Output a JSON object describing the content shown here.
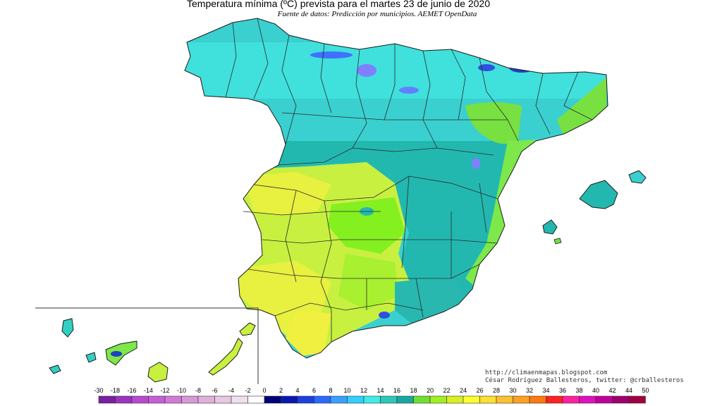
{
  "header": {
    "title": "Temperatura mínima (ºC) prevista para el martes 23 de junio de 2020",
    "subtitle": "Fuente de datos: Predicción por municipios. AEMET OpenData"
  },
  "credits": {
    "line1": "http://climaenmapas.blogspot.com",
    "line2": "César Rodríguez Ballesteros, twitter: @crballesteros"
  },
  "legend": {
    "labels": [
      "-30",
      "-18",
      "-16",
      "-14",
      "-12",
      "-10",
      "-8",
      "-6",
      "-4",
      "-2",
      "0",
      "2",
      "4",
      "6",
      "8",
      "10",
      "12",
      "14",
      "16",
      "18",
      "20",
      "22",
      "24",
      "26",
      "28",
      "30",
      "32",
      "34",
      "36",
      "38",
      "40",
      "42",
      "44",
      "50"
    ],
    "colors": [
      "#7a1fa0",
      "#9b33c0",
      "#b84ad0",
      "#c85ed8",
      "#d27ad8",
      "#d898d8",
      "#e0b0dc",
      "#e8c8e4",
      "#f0e0ee",
      "#ffffff",
      "#00007a",
      "#0a18b0",
      "#1a40e0",
      "#2a6aff",
      "#3aa0ff",
      "#30d0ff",
      "#40ece8",
      "#2cc8b8",
      "#18a8a0",
      "#70e030",
      "#a0f020",
      "#d8f020",
      "#ffff30",
      "#ffe030",
      "#ffc030",
      "#ffa020",
      "#ff7810",
      "#ff2020",
      "#ff20a0",
      "#e010c0",
      "#c00098",
      "#a00070",
      "#a00040"
    ]
  },
  "map_colors": {
    "north_cyan": "#3ad0d0",
    "north_light": "#40e8e0",
    "teal": "#20b0a8",
    "green_lime": "#80f020",
    "yellow": "#e8f040",
    "blue_cold": "#3050e0",
    "violet": "#8080ff",
    "border": "#1a1a1a"
  }
}
